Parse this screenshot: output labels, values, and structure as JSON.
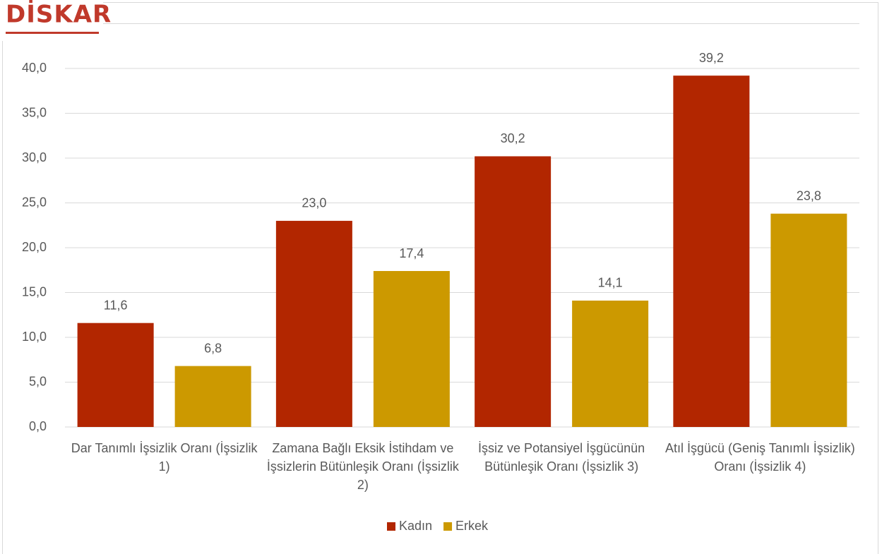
{
  "logo": "DİSKAR",
  "chart_data": {
    "type": "bar",
    "categories": [
      "Dar Tanımlı İşsizlik Oranı (İşsizlik 1)",
      "Zamana Bağlı Eksik İstihdam ve İşsizlerin Bütünleşik Oranı (İşsizlik 2)",
      "İşsiz ve Potansiyel İşgücünün Bütünleşik Oranı (İşsizlik 3)",
      "Atıl İşgücü (Geniş Tanımlı İşsizlik) Oranı (İşsizlik 4)"
    ],
    "series": [
      {
        "name": "Kadın",
        "color": "#b22600",
        "values": [
          11.6,
          23.0,
          30.2,
          39.2
        ],
        "value_labels": [
          "11,6",
          "23,0",
          "30,2",
          "39,2"
        ]
      },
      {
        "name": "Erkek",
        "color": "#cc9900",
        "values": [
          6.8,
          17.4,
          14.1,
          23.8
        ],
        "value_labels": [
          "6,8",
          "17,4",
          "14,1",
          "23,8"
        ]
      }
    ],
    "ylim": [
      0,
      45
    ],
    "yticks": [
      {
        "value": 0,
        "label": "0,0"
      },
      {
        "value": 5,
        "label": "5,0"
      },
      {
        "value": 10,
        "label": "10,0"
      },
      {
        "value": 15,
        "label": "15,0"
      },
      {
        "value": 20,
        "label": "20,0"
      },
      {
        "value": 25,
        "label": "25,0"
      },
      {
        "value": 30,
        "label": "30,0"
      },
      {
        "value": 35,
        "label": "35,0"
      },
      {
        "value": 40,
        "label": "40,0"
      }
    ],
    "grid": true,
    "legend": "bottom"
  }
}
